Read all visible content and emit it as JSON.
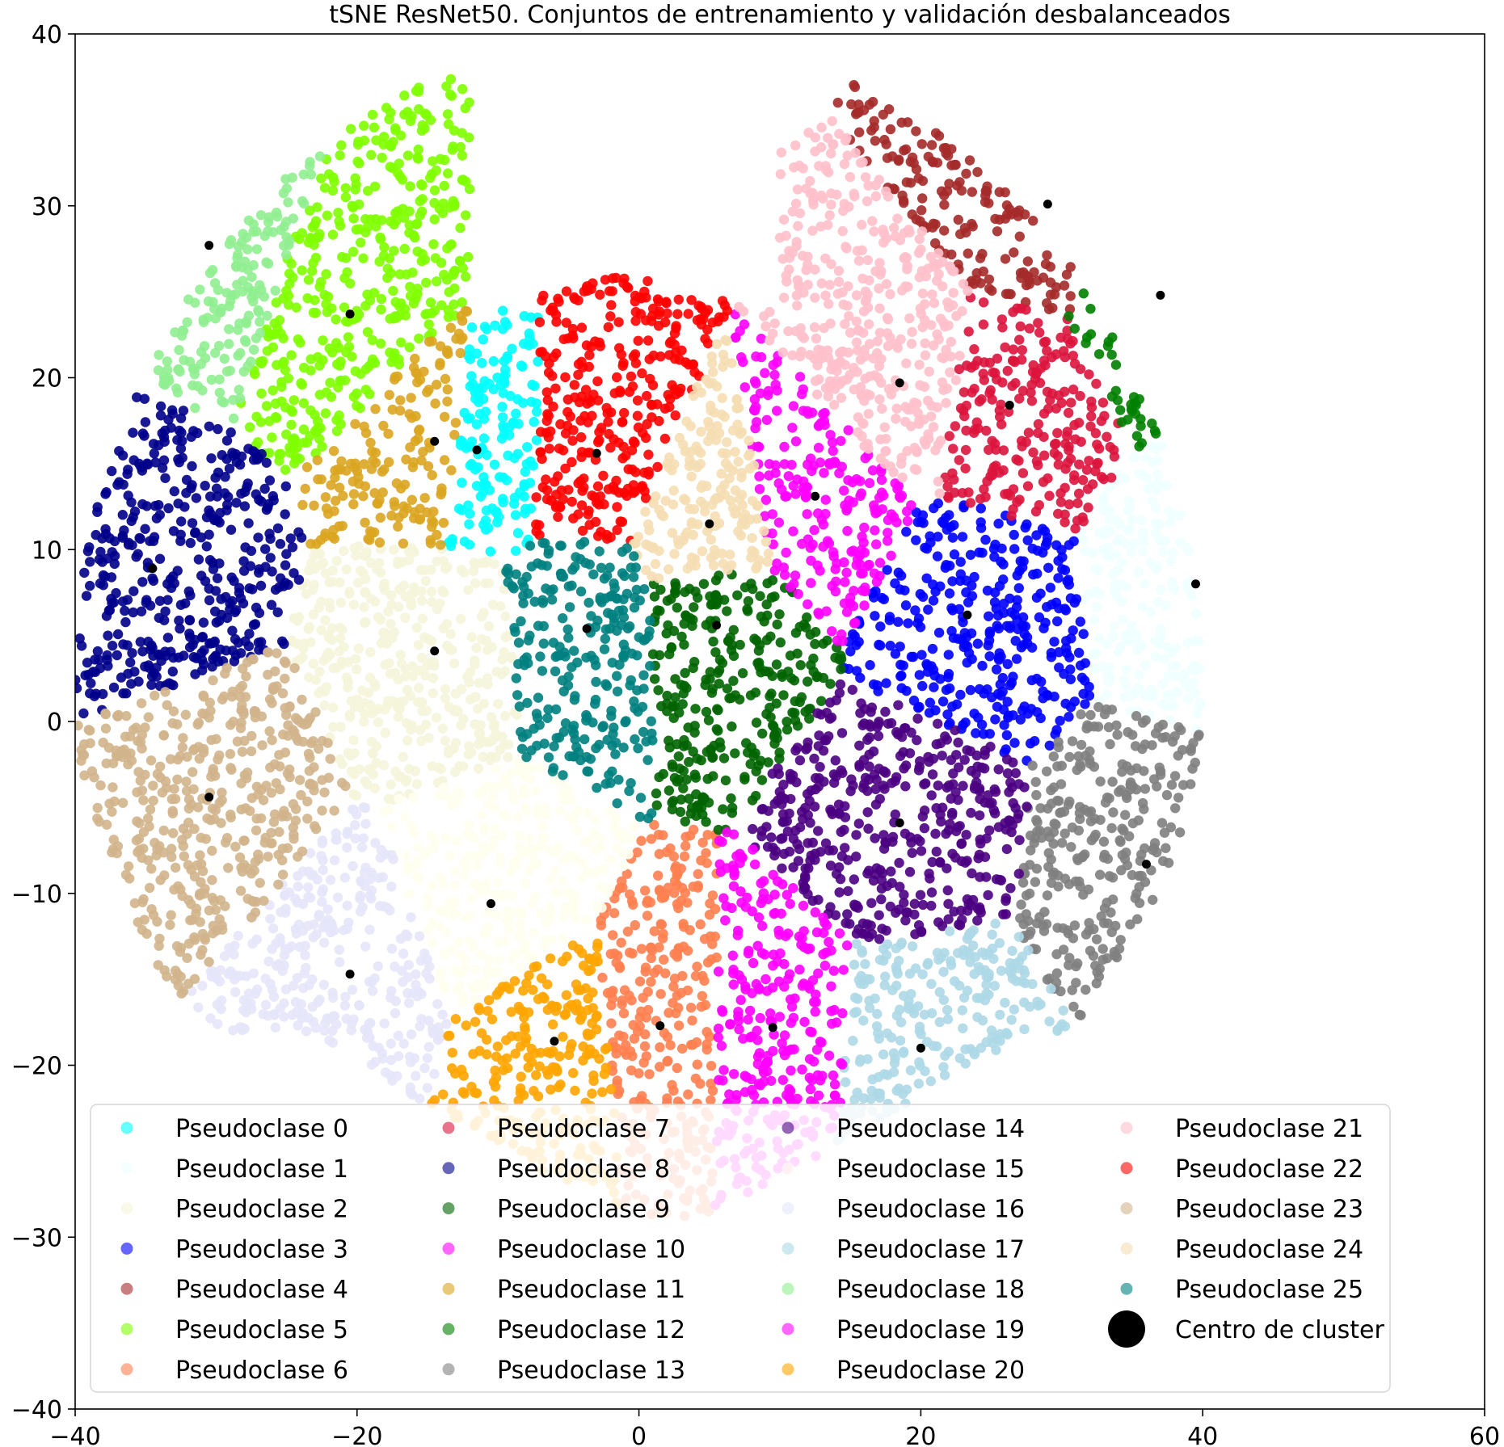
{
  "chart_data": {
    "type": "scatter",
    "title": "tSNE ResNet50. Conjuntos de entrenamiento y validación desbalanceados",
    "xlabel": "",
    "ylabel": "",
    "xlim": [
      -40,
      60
    ],
    "ylim": [
      -40,
      40
    ],
    "x_ticks": [
      -40,
      -20,
      0,
      20,
      40,
      60
    ],
    "y_ticks": [
      -40,
      -30,
      -20,
      -10,
      0,
      10,
      20,
      30,
      40
    ],
    "x_tick_labels": [
      "−40",
      "−20",
      "0",
      "20",
      "40",
      "60"
    ],
    "y_tick_labels": [
      "−40",
      "−30",
      "−20",
      "−10",
      "0",
      "10",
      "20",
      "30",
      "40"
    ],
    "grid": false,
    "legend_position": "lower-center",
    "legend_columns": 4,
    "series": [
      {
        "name": "Pseudoclase 0",
        "color": "#00ffff",
        "center": [
          -11.5,
          15.8
        ]
      },
      {
        "name": "Pseudoclase 1",
        "color": "#f0ffff",
        "center": [
          39.5,
          8.0
        ]
      },
      {
        "name": "Pseudoclase 2",
        "color": "#f5f5dc",
        "center": [
          -14.5,
          4.1
        ]
      },
      {
        "name": "Pseudoclase 3",
        "color": "#0000ff",
        "center": [
          23.3,
          6.2
        ]
      },
      {
        "name": "Pseudoclase 4",
        "color": "#a52a2a",
        "center": [
          29.0,
          30.1
        ]
      },
      {
        "name": "Pseudoclase 5",
        "color": "#7fff00",
        "center": [
          -20.5,
          23.7
        ]
      },
      {
        "name": "Pseudoclase 6",
        "color": "#ff7f50",
        "center": [
          1.5,
          -17.7
        ]
      },
      {
        "name": "Pseudoclase 7",
        "color": "#dc143c",
        "center": [
          26.3,
          18.4
        ]
      },
      {
        "name": "Pseudoclase 8",
        "color": "#00008b",
        "center": [
          -34.5,
          8.9
        ]
      },
      {
        "name": "Pseudoclase 9",
        "color": "#006400",
        "center": [
          5.5,
          5.6
        ]
      },
      {
        "name": "Pseudoclase 10",
        "color": "#ff00ff",
        "center": [
          12.5,
          13.1
        ]
      },
      {
        "name": "Pseudoclase 11",
        "color": "#daa520",
        "center": [
          -14.5,
          16.3
        ]
      },
      {
        "name": "Pseudoclase 12",
        "color": "#008000",
        "center": [
          37.0,
          24.8
        ]
      },
      {
        "name": "Pseudoclase 13",
        "color": "#808080",
        "center": [
          36.0,
          -8.3
        ]
      },
      {
        "name": "Pseudoclase 14",
        "color": "#4b0082",
        "center": [
          18.5,
          -5.9
        ]
      },
      {
        "name": "Pseudoclase 15",
        "color": "#fffff0",
        "center": [
          -10.5,
          -10.6
        ]
      },
      {
        "name": "Pseudoclase 16",
        "color": "#e6e6fa",
        "center": [
          -20.5,
          -14.7
        ]
      },
      {
        "name": "Pseudoclase 17",
        "color": "#add8e6",
        "center": [
          20.0,
          -19.0
        ]
      },
      {
        "name": "Pseudoclase 18",
        "color": "#90ee90",
        "center": [
          -30.5,
          27.7
        ]
      },
      {
        "name": "Pseudoclase 19",
        "color": "#ff00ff",
        "center": [
          9.5,
          -17.8
        ]
      },
      {
        "name": "Pseudoclase 20",
        "color": "#ffa500",
        "center": [
          -6.0,
          -18.6
        ]
      },
      {
        "name": "Pseudoclase 21",
        "color": "#ffc0cb",
        "center": [
          18.5,
          19.7
        ]
      },
      {
        "name": "Pseudoclase 22",
        "color": "#ff0000",
        "center": [
          -3.0,
          15.6
        ]
      },
      {
        "name": "Pseudoclase 23",
        "color": "#d2b48c",
        "center": [
          -30.5,
          -4.4
        ]
      },
      {
        "name": "Pseudoclase 24",
        "color": "#f5deb3",
        "center": [
          5.0,
          11.5
        ]
      },
      {
        "name": "Pseudoclase 25",
        "color": "#008080",
        "center": [
          -3.7,
          5.4
        ]
      }
    ],
    "centers_series": {
      "name": "Centro de cluster",
      "color": "#000000",
      "points": [
        [
          -30.5,
          27.7
        ],
        [
          -20.5,
          23.7
        ],
        [
          -14.5,
          16.3
        ],
        [
          -11.5,
          15.8
        ],
        [
          -3.0,
          15.6
        ],
        [
          -34.5,
          8.9
        ],
        [
          -3.7,
          5.4
        ],
        [
          -14.5,
          4.1
        ],
        [
          5.0,
          11.5
        ],
        [
          5.5,
          5.6
        ],
        [
          12.5,
          13.1
        ],
        [
          18.5,
          19.7
        ],
        [
          26.3,
          18.4
        ],
        [
          29.0,
          30.1
        ],
        [
          37.0,
          24.8
        ],
        [
          39.5,
          8.0
        ],
        [
          23.3,
          6.2
        ],
        [
          -30.5,
          -4.4
        ],
        [
          18.5,
          -5.9
        ],
        [
          36.0,
          -8.3
        ],
        [
          -10.5,
          -10.6
        ],
        [
          -20.5,
          -14.7
        ],
        [
          -6.0,
          -18.6
        ],
        [
          1.5,
          -17.7
        ],
        [
          9.5,
          -17.8
        ],
        [
          20.0,
          -19.0
        ]
      ]
    }
  }
}
